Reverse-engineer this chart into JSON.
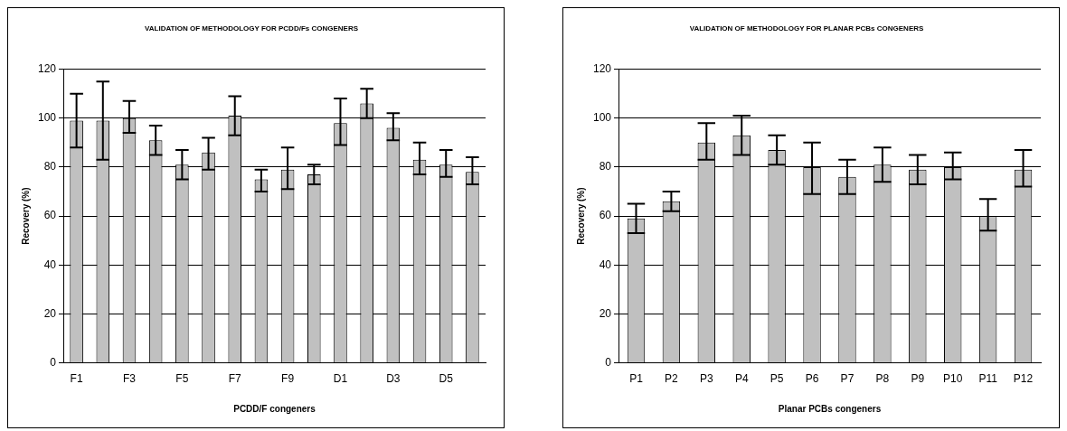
{
  "chart_data": [
    {
      "type": "bar",
      "title": "VALIDATION OF METHODOLOGY FOR PCDD/Fs CONGENERS",
      "xlabel": "PCDD/F congeners",
      "ylabel": "Recovery (%)",
      "categories": [
        "F1",
        null,
        "F3",
        null,
        "F5",
        null,
        "F7",
        null,
        "F9",
        null,
        "D1",
        null,
        "D3",
        null,
        "D5",
        null
      ],
      "values": [
        99,
        99,
        100,
        91,
        81,
        86,
        101,
        75,
        79,
        77,
        98,
        106,
        96,
        83,
        81,
        78
      ],
      "errors": [
        [
          88,
          110
        ],
        [
          83,
          115
        ],
        [
          94,
          107
        ],
        [
          85,
          97
        ],
        [
          75,
          87
        ],
        [
          79,
          92
        ],
        [
          93,
          109
        ],
        [
          70,
          79
        ],
        [
          71,
          88
        ],
        [
          73,
          81
        ],
        [
          89,
          108
        ],
        [
          100,
          112
        ],
        [
          91,
          102
        ],
        [
          77,
          90
        ],
        [
          76,
          87
        ],
        [
          73,
          84
        ]
      ],
      "color": "#c0c0c0",
      "ylim": [
        0,
        120
      ],
      "yticks": [
        0,
        20,
        40,
        60,
        80,
        100,
        120
      ],
      "grid": "y",
      "legend": false
    },
    {
      "type": "bar",
      "title": "VALIDATION OF METHODOLOGY FOR PLANAR PCBs CONGENERS",
      "xlabel": "Planar PCBs congeners",
      "ylabel": "Recovery (%)",
      "categories": [
        "P1",
        "P2",
        "P3",
        "P4",
        "P5",
        "P6",
        "P7",
        "P8",
        "P9",
        "P10",
        "P11",
        "P12"
      ],
      "values": [
        59,
        66,
        90,
        93,
        87,
        80,
        76,
        81,
        79,
        80,
        60,
        79
      ],
      "errors": [
        [
          53,
          65
        ],
        [
          62,
          70
        ],
        [
          83,
          98
        ],
        [
          85,
          101
        ],
        [
          81,
          93
        ],
        [
          69,
          90
        ],
        [
          69,
          83
        ],
        [
          74,
          88
        ],
        [
          73,
          85
        ],
        [
          75,
          86
        ],
        [
          54,
          67
        ],
        [
          72,
          87
        ]
      ],
      "color": "#c0c0c0",
      "ylim": [
        0,
        120
      ],
      "yticks": [
        0,
        20,
        40,
        60,
        80,
        100,
        120
      ],
      "grid": "y",
      "legend": false
    }
  ]
}
